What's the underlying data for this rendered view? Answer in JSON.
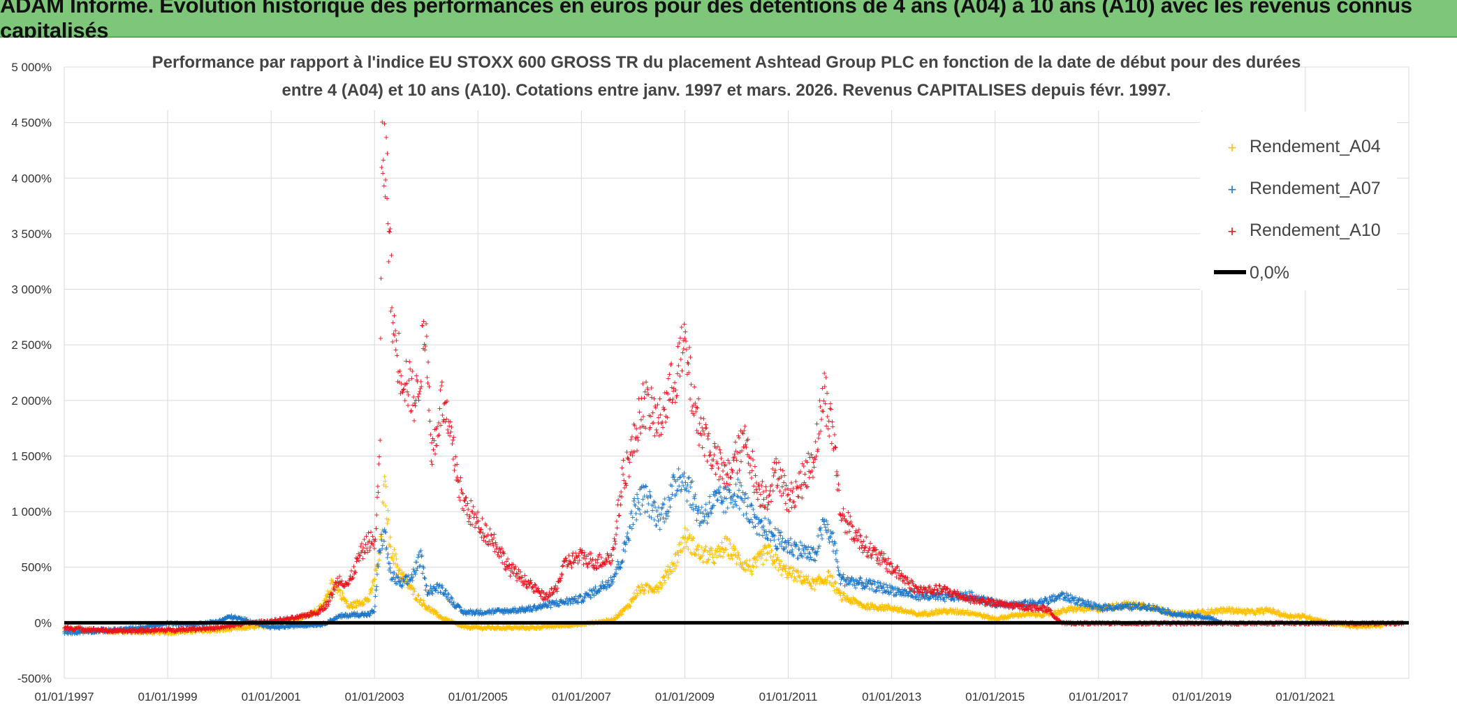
{
  "banner": {
    "text": "ADAM Informe. Evolution historique des performances en euros pour des détentions de 4 ans (A04) à 10 ans (A10) avec les revenus connus capitalisés"
  },
  "colors": {
    "banner_bg": "#7dc67a",
    "A04": "#ffc000",
    "A07": "#1f77c8",
    "A10": "#e8141e",
    "zero": "#000000"
  },
  "chart_data": {
    "type": "scatter",
    "title": [
      "Performance par rapport à l'indice EU STOXX 600 GROSS TR  du placement Ashtead Group PLC en fonction de la date de début pour des durées",
      "entre 4 (A04) et 10 ans (A10). Cotations entre janv. 1997 et mars. 2026. Revenus CAPITALISES depuis févr. 1997."
    ],
    "x_range": [
      1997.0,
      2023.0
    ],
    "x_ticks": [
      {
        "x": 1997,
        "label": "01/01/1997"
      },
      {
        "x": 1999,
        "label": "01/01/1999"
      },
      {
        "x": 2001,
        "label": "01/01/2001"
      },
      {
        "x": 2003,
        "label": "01/01/2003"
      },
      {
        "x": 2005,
        "label": "01/01/2005"
      },
      {
        "x": 2007,
        "label": "01/01/2007"
      },
      {
        "x": 2009,
        "label": "01/01/2009"
      },
      {
        "x": 2011,
        "label": "01/01/2011"
      },
      {
        "x": 2013,
        "label": "01/01/2013"
      },
      {
        "x": 2015,
        "label": "01/01/2015"
      },
      {
        "x": 2017,
        "label": "01/01/2017"
      },
      {
        "x": 2019,
        "label": "01/01/2019"
      },
      {
        "x": 2021,
        "label": "01/01/2021"
      }
    ],
    "y_range": [
      -500,
      5000
    ],
    "y_ticks": [
      {
        "y": -500,
        "label": "-500%"
      },
      {
        "y": 0,
        "label": "0%"
      },
      {
        "y": 500,
        "label": "500%"
      },
      {
        "y": 1000,
        "label": "1 000%"
      },
      {
        "y": 1500,
        "label": "1 500%"
      },
      {
        "y": 2000,
        "label": "2 000%"
      },
      {
        "y": 2500,
        "label": "2 500%"
      },
      {
        "y": 3000,
        "label": "3 000%"
      },
      {
        "y": 3500,
        "label": "3 500%"
      },
      {
        "y": 4000,
        "label": "4 000%"
      },
      {
        "y": 4500,
        "label": "4 500%"
      },
      {
        "y": 5000,
        "label": "5 000%"
      }
    ],
    "gridlines": true,
    "marker": "+",
    "legend_position": "top-right",
    "series": [
      {
        "name": "Rendement_A04",
        "color": "#ffc000",
        "x_end": 2022.5,
        "points": [
          [
            1997.0,
            -60
          ],
          [
            1998.0,
            -70
          ],
          [
            1999.0,
            -80
          ],
          [
            2000.0,
            -60
          ],
          [
            2001.0,
            -20
          ],
          [
            2001.6,
            50
          ],
          [
            2002.0,
            150
          ],
          [
            2002.2,
            380
          ],
          [
            2002.5,
            150
          ],
          [
            2002.9,
            220
          ],
          [
            2003.1,
            600
          ],
          [
            2003.2,
            1250
          ],
          [
            2003.3,
            700
          ],
          [
            2003.5,
            450
          ],
          [
            2003.8,
            250
          ],
          [
            2004.0,
            150
          ],
          [
            2004.3,
            50
          ],
          [
            2004.7,
            -30
          ],
          [
            2005.0,
            -40
          ],
          [
            2006.0,
            -40
          ],
          [
            2007.0,
            -10
          ],
          [
            2007.6,
            30
          ],
          [
            2007.9,
            150
          ],
          [
            2008.1,
            300
          ],
          [
            2008.5,
            330
          ],
          [
            2008.8,
            550
          ],
          [
            2009.0,
            780
          ],
          [
            2009.3,
            620
          ],
          [
            2009.6,
            600
          ],
          [
            2009.8,
            700
          ],
          [
            2010.1,
            550
          ],
          [
            2010.3,
            500
          ],
          [
            2010.6,
            650
          ],
          [
            2010.9,
            480
          ],
          [
            2011.2,
            420
          ],
          [
            2011.5,
            350
          ],
          [
            2011.8,
            420
          ],
          [
            2012.0,
            250
          ],
          [
            2012.5,
            150
          ],
          [
            2013.0,
            140
          ],
          [
            2013.5,
            80
          ],
          [
            2014.0,
            110
          ],
          [
            2014.5,
            100
          ],
          [
            2015.0,
            40
          ],
          [
            2015.5,
            80
          ],
          [
            2016.0,
            80
          ],
          [
            2016.5,
            130
          ],
          [
            2017.0,
            130
          ],
          [
            2017.5,
            170
          ],
          [
            2018.0,
            150
          ],
          [
            2018.5,
            80
          ],
          [
            2019.0,
            100
          ],
          [
            2019.5,
            120
          ],
          [
            2020.0,
            100
          ],
          [
            2020.3,
            120
          ],
          [
            2020.6,
            70
          ],
          [
            2021.0,
            60
          ],
          [
            2021.5,
            0
          ],
          [
            2022.0,
            -30
          ],
          [
            2022.5,
            -20
          ]
        ]
      },
      {
        "name": "Rendement_A07",
        "color": "#1f77c8",
        "x_end": 2019.4,
        "points": [
          [
            1997.0,
            -80
          ],
          [
            1997.5,
            -70
          ],
          [
            1998.0,
            -60
          ],
          [
            1998.5,
            -40
          ],
          [
            1999.0,
            0
          ],
          [
            1999.5,
            -10
          ],
          [
            2000.0,
            20
          ],
          [
            2000.2,
            60
          ],
          [
            2000.5,
            30
          ],
          [
            2001.0,
            -40
          ],
          [
            2001.5,
            -20
          ],
          [
            2002.0,
            -10
          ],
          [
            2002.3,
            60
          ],
          [
            2002.6,
            80
          ],
          [
            2002.9,
            80
          ],
          [
            2003.0,
            120
          ],
          [
            2003.1,
            700
          ],
          [
            2003.2,
            800
          ],
          [
            2003.3,
            450
          ],
          [
            2003.5,
            350
          ],
          [
            2003.7,
            400
          ],
          [
            2003.9,
            600
          ],
          [
            2004.0,
            300
          ],
          [
            2004.3,
            320
          ],
          [
            2004.5,
            200
          ],
          [
            2004.7,
            100
          ],
          [
            2005.0,
            100
          ],
          [
            2005.5,
            110
          ],
          [
            2006.0,
            130
          ],
          [
            2006.5,
            180
          ],
          [
            2007.0,
            220
          ],
          [
            2007.3,
            300
          ],
          [
            2007.6,
            400
          ],
          [
            2007.8,
            600
          ],
          [
            2008.0,
            1000
          ],
          [
            2008.2,
            1150
          ],
          [
            2008.5,
            950
          ],
          [
            2008.7,
            1100
          ],
          [
            2008.9,
            1350
          ],
          [
            2009.1,
            1200
          ],
          [
            2009.3,
            950
          ],
          [
            2009.6,
            1100
          ],
          [
            2009.8,
            1100
          ],
          [
            2010.0,
            1200
          ],
          [
            2010.2,
            1050
          ],
          [
            2010.4,
            850
          ],
          [
            2010.6,
            850
          ],
          [
            2010.8,
            750
          ],
          [
            2011.0,
            700
          ],
          [
            2011.3,
            650
          ],
          [
            2011.5,
            600
          ],
          [
            2011.7,
            900
          ],
          [
            2011.9,
            700
          ],
          [
            2012.0,
            400
          ],
          [
            2012.5,
            350
          ],
          [
            2013.0,
            300
          ],
          [
            2013.5,
            250
          ],
          [
            2014.0,
            230
          ],
          [
            2014.5,
            250
          ],
          [
            2015.0,
            180
          ],
          [
            2015.5,
            170
          ],
          [
            2016.0,
            200
          ],
          [
            2016.3,
            250
          ],
          [
            2016.6,
            200
          ],
          [
            2017.0,
            140
          ],
          [
            2017.5,
            150
          ],
          [
            2018.0,
            150
          ],
          [
            2018.5,
            80
          ],
          [
            2019.0,
            60
          ],
          [
            2019.2,
            40
          ],
          [
            2019.4,
            0
          ]
        ]
      },
      {
        "name": "Rendement_A10",
        "color": "#e8141e",
        "x_end": 2022.9,
        "points": [
          [
            1997.0,
            -40
          ],
          [
            1997.5,
            -55
          ],
          [
            1998.0,
            -70
          ],
          [
            1998.5,
            -65
          ],
          [
            1999.0,
            -60
          ],
          [
            1999.5,
            -50
          ],
          [
            2000.0,
            -40
          ],
          [
            2000.5,
            0
          ],
          [
            2001.0,
            20
          ],
          [
            2001.5,
            50
          ],
          [
            2001.9,
            100
          ],
          [
            2002.1,
            180
          ],
          [
            2002.3,
            400
          ],
          [
            2002.5,
            350
          ],
          [
            2002.7,
            600
          ],
          [
            2002.9,
            750
          ],
          [
            2003.0,
            700
          ],
          [
            2003.1,
            1450
          ],
          [
            2003.15,
            4400
          ],
          [
            2003.25,
            3900
          ],
          [
            2003.35,
            2700
          ],
          [
            2003.5,
            2300
          ],
          [
            2003.7,
            2100
          ],
          [
            2003.8,
            2000
          ],
          [
            2004.0,
            2700
          ],
          [
            2004.1,
            1500
          ],
          [
            2004.3,
            2000
          ],
          [
            2004.5,
            1600
          ],
          [
            2004.7,
            1100
          ],
          [
            2005.0,
            900
          ],
          [
            2005.3,
            750
          ],
          [
            2005.6,
            500
          ],
          [
            2006.0,
            350
          ],
          [
            2006.3,
            230
          ],
          [
            2006.5,
            300
          ],
          [
            2006.7,
            550
          ],
          [
            2007.0,
            600
          ],
          [
            2007.3,
            550
          ],
          [
            2007.6,
            600
          ],
          [
            2007.8,
            1300
          ],
          [
            2008.0,
            1600
          ],
          [
            2008.2,
            2000
          ],
          [
            2008.5,
            1800
          ],
          [
            2008.8,
            2200
          ],
          [
            2009.0,
            2500
          ],
          [
            2009.2,
            1900
          ],
          [
            2009.5,
            1550
          ],
          [
            2009.8,
            1300
          ],
          [
            2010.0,
            1500
          ],
          [
            2010.2,
            1650
          ],
          [
            2010.4,
            1200
          ],
          [
            2010.6,
            1150
          ],
          [
            2010.8,
            1400
          ],
          [
            2011.0,
            1100
          ],
          [
            2011.3,
            1300
          ],
          [
            2011.5,
            1500
          ],
          [
            2011.7,
            2100
          ],
          [
            2011.9,
            1600
          ],
          [
            2012.0,
            1000
          ],
          [
            2012.3,
            800
          ],
          [
            2012.6,
            650
          ],
          [
            2013.0,
            500
          ],
          [
            2013.5,
            300
          ],
          [
            2014.0,
            300
          ],
          [
            2014.5,
            220
          ],
          [
            2015.0,
            180
          ],
          [
            2015.5,
            150
          ],
          [
            2016.0,
            130
          ],
          [
            2016.3,
            0
          ],
          [
            2017.0,
            0
          ],
          [
            2018.0,
            0
          ],
          [
            2019.0,
            0
          ],
          [
            2020.0,
            0
          ],
          [
            2021.0,
            0
          ],
          [
            2022.0,
            0
          ],
          [
            2022.9,
            0
          ]
        ]
      }
    ],
    "legend": [
      {
        "label": "Rendement_A04",
        "kind": "marker",
        "color": "#ffc000"
      },
      {
        "label": "Rendement_A07",
        "kind": "marker",
        "color": "#1f77c8"
      },
      {
        "label": "Rendement_A10",
        "kind": "marker",
        "color": "#e8141e"
      },
      {
        "label": "0,0%",
        "kind": "line",
        "color": "#000000"
      }
    ],
    "zero_line": {
      "y": 0,
      "label": "0,0%"
    }
  }
}
